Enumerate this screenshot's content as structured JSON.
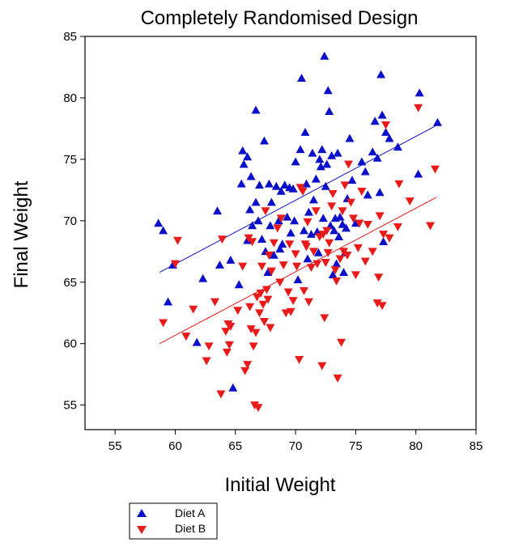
{
  "chart_data": {
    "type": "scatter",
    "title": "Completely Randomised Design",
    "xlabel": "Initial Weight",
    "ylabel": "Final Weight",
    "xlim": [
      52.5,
      85
    ],
    "ylim": [
      53,
      85
    ],
    "xticks": [
      55,
      60,
      65,
      70,
      75,
      80,
      85
    ],
    "yticks": [
      55,
      60,
      65,
      70,
      75,
      80,
      85
    ],
    "grid": false,
    "legend_position": "bottom-left",
    "series": [
      {
        "name": "Diet A",
        "marker": "triangle-up",
        "color": "#0a10c8",
        "fit_line": {
          "x": [
            58.7,
            81.8
          ],
          "y": [
            65.8,
            77.8
          ]
        },
        "points": [
          [
            58.6,
            69.8
          ],
          [
            59.0,
            69.2
          ],
          [
            59.4,
            63.4
          ],
          [
            59.8,
            66.4
          ],
          [
            61.8,
            60.1
          ],
          [
            62.3,
            65.3
          ],
          [
            63.5,
            70.8
          ],
          [
            63.7,
            66.4
          ],
          [
            64.6,
            66.8
          ],
          [
            64.8,
            56.4
          ],
          [
            65.3,
            64.8
          ],
          [
            65.5,
            73.0
          ],
          [
            65.6,
            75.7
          ],
          [
            65.7,
            74.6
          ],
          [
            66.0,
            75.2
          ],
          [
            66.0,
            68.4
          ],
          [
            66.2,
            70.9
          ],
          [
            66.3,
            73.6
          ],
          [
            66.4,
            69.6
          ],
          [
            66.7,
            79.0
          ],
          [
            66.7,
            71.5
          ],
          [
            66.9,
            70.0
          ],
          [
            67.0,
            72.9
          ],
          [
            67.2,
            68.5
          ],
          [
            67.4,
            76.5
          ],
          [
            67.5,
            67.5
          ],
          [
            67.7,
            65.8
          ],
          [
            67.8,
            73.0
          ],
          [
            67.9,
            69.6
          ],
          [
            68.0,
            71.5
          ],
          [
            68.2,
            67.2
          ],
          [
            68.4,
            72.8
          ],
          [
            68.6,
            70.0
          ],
          [
            68.7,
            67.7
          ],
          [
            68.8,
            72.4
          ],
          [
            68.9,
            68.1
          ],
          [
            69.1,
            72.9
          ],
          [
            69.3,
            70.3
          ],
          [
            69.5,
            72.7
          ],
          [
            69.6,
            69.0
          ],
          [
            69.8,
            72.6
          ],
          [
            69.9,
            70.0
          ],
          [
            70.0,
            74.8
          ],
          [
            70.2,
            65.2
          ],
          [
            70.4,
            75.8
          ],
          [
            70.5,
            81.6
          ],
          [
            70.7,
            69.2
          ],
          [
            70.8,
            77.2
          ],
          [
            70.9,
            73.0
          ],
          [
            71.0,
            66.9
          ],
          [
            71.1,
            70.7
          ],
          [
            71.3,
            68.9
          ],
          [
            71.4,
            75.5
          ],
          [
            71.5,
            71.7
          ],
          [
            71.7,
            73.4
          ],
          [
            71.8,
            69.1
          ],
          [
            71.9,
            67.4
          ],
          [
            72.0,
            75.0
          ],
          [
            72.1,
            74.4
          ],
          [
            72.2,
            75.8
          ],
          [
            72.3,
            70.2
          ],
          [
            72.4,
            83.4
          ],
          [
            72.5,
            72.8
          ],
          [
            72.6,
            74.6
          ],
          [
            72.7,
            80.6
          ],
          [
            72.8,
            78.9
          ],
          [
            72.9,
            69.6
          ],
          [
            73.0,
            75.3
          ],
          [
            73.1,
            65.6
          ],
          [
            73.2,
            69.2
          ],
          [
            73.3,
            70.2
          ],
          [
            73.4,
            66.5
          ],
          [
            73.5,
            75.5
          ],
          [
            73.6,
            68.7
          ],
          [
            73.7,
            70.3
          ],
          [
            73.9,
            69.7
          ],
          [
            74.0,
            65.8
          ],
          [
            74.1,
            67.4
          ],
          [
            74.2,
            69.4
          ],
          [
            74.3,
            71.8
          ],
          [
            74.5,
            76.7
          ],
          [
            74.7,
            73.3
          ],
          [
            75.0,
            69.8
          ],
          [
            75.5,
            74.8
          ],
          [
            75.8,
            74.0
          ],
          [
            76.0,
            72.1
          ],
          [
            76.4,
            75.6
          ],
          [
            76.6,
            78.1
          ],
          [
            76.8,
            75.1
          ],
          [
            77.0,
            72.3
          ],
          [
            77.1,
            81.9
          ],
          [
            77.2,
            78.6
          ],
          [
            77.3,
            68.3
          ],
          [
            77.5,
            77.2
          ],
          [
            77.8,
            76.7
          ],
          [
            78.5,
            76.0
          ],
          [
            80.2,
            73.8
          ],
          [
            80.3,
            80.4
          ],
          [
            81.8,
            78.0
          ]
        ]
      },
      {
        "name": "Diet B",
        "marker": "triangle-down",
        "color": "#e81a1a",
        "fit_line": {
          "x": [
            58.7,
            81.7
          ],
          "y": [
            60.0,
            71.9
          ]
        },
        "points": [
          [
            59.0,
            61.7
          ],
          [
            60.0,
            66.5
          ],
          [
            60.2,
            68.4
          ],
          [
            60.9,
            60.6
          ],
          [
            61.5,
            62.8
          ],
          [
            62.6,
            58.6
          ],
          [
            62.8,
            59.8
          ],
          [
            63.3,
            63.4
          ],
          [
            63.8,
            55.9
          ],
          [
            63.9,
            68.5
          ],
          [
            64.2,
            61.0
          ],
          [
            64.3,
            59.3
          ],
          [
            64.4,
            61.6
          ],
          [
            64.5,
            59.9
          ],
          [
            64.6,
            61.4
          ],
          [
            65.2,
            62.7
          ],
          [
            65.6,
            66.3
          ],
          [
            65.8,
            57.8
          ],
          [
            66.0,
            58.3
          ],
          [
            66.1,
            68.6
          ],
          [
            66.2,
            63.0
          ],
          [
            66.3,
            61.2
          ],
          [
            66.4,
            68.3
          ],
          [
            66.5,
            59.8
          ],
          [
            66.6,
            55.0
          ],
          [
            66.7,
            60.9
          ],
          [
            66.8,
            63.8
          ],
          [
            66.9,
            54.8
          ],
          [
            67.0,
            62.5
          ],
          [
            67.1,
            64.1
          ],
          [
            67.2,
            66.3
          ],
          [
            67.3,
            63.2
          ],
          [
            67.4,
            61.8
          ],
          [
            67.5,
            70.8
          ],
          [
            67.6,
            64.4
          ],
          [
            67.7,
            63.6
          ],
          [
            67.8,
            67.2
          ],
          [
            67.9,
            61.3
          ],
          [
            68.0,
            65.9
          ],
          [
            68.2,
            68.2
          ],
          [
            68.5,
            69.4
          ],
          [
            68.7,
            65.0
          ],
          [
            68.8,
            70.2
          ],
          [
            69.0,
            66.4
          ],
          [
            69.2,
            62.5
          ],
          [
            69.4,
            64.2
          ],
          [
            69.5,
            68.1
          ],
          [
            69.6,
            62.6
          ],
          [
            69.8,
            63.5
          ],
          [
            70.0,
            67.3
          ],
          [
            70.1,
            66.3
          ],
          [
            70.3,
            58.7
          ],
          [
            70.4,
            72.7
          ],
          [
            70.6,
            72.4
          ],
          [
            70.7,
            64.3
          ],
          [
            70.8,
            68.1
          ],
          [
            70.9,
            67.9
          ],
          [
            71.0,
            69.9
          ],
          [
            71.1,
            63.4
          ],
          [
            71.3,
            66.2
          ],
          [
            71.5,
            67.5
          ],
          [
            71.7,
            70.8
          ],
          [
            71.8,
            66.5
          ],
          [
            72.0,
            68.7
          ],
          [
            72.2,
            58.2
          ],
          [
            72.3,
            68.9
          ],
          [
            72.4,
            62.1
          ],
          [
            72.5,
            66.6
          ],
          [
            72.6,
            69.2
          ],
          [
            72.7,
            67.4
          ],
          [
            72.8,
            68.2
          ],
          [
            73.0,
            71.2
          ],
          [
            73.1,
            72.2
          ],
          [
            73.3,
            66.0
          ],
          [
            73.4,
            65.1
          ],
          [
            73.5,
            57.2
          ],
          [
            73.7,
            66.9
          ],
          [
            73.8,
            60.1
          ],
          [
            73.9,
            70.8
          ],
          [
            74.0,
            67.5
          ],
          [
            74.1,
            72.9
          ],
          [
            74.3,
            67.2
          ],
          [
            74.4,
            74.6
          ],
          [
            74.6,
            71.5
          ],
          [
            74.8,
            70.2
          ],
          [
            75.0,
            65.6
          ],
          [
            75.2,
            67.8
          ],
          [
            75.3,
            69.8
          ],
          [
            75.5,
            72.4
          ],
          [
            75.8,
            66.7
          ],
          [
            76.0,
            69.7
          ],
          [
            76.4,
            67.5
          ],
          [
            76.8,
            63.3
          ],
          [
            76.9,
            65.4
          ],
          [
            77.0,
            70.4
          ],
          [
            77.2,
            63.1
          ],
          [
            77.3,
            68.9
          ],
          [
            77.5,
            77.8
          ],
          [
            77.8,
            68.6
          ],
          [
            78.5,
            69.5
          ],
          [
            78.6,
            73.0
          ],
          [
            79.5,
            71.6
          ],
          [
            80.2,
            79.2
          ],
          [
            81.2,
            69.6
          ],
          [
            81.6,
            74.2
          ]
        ]
      }
    ]
  }
}
